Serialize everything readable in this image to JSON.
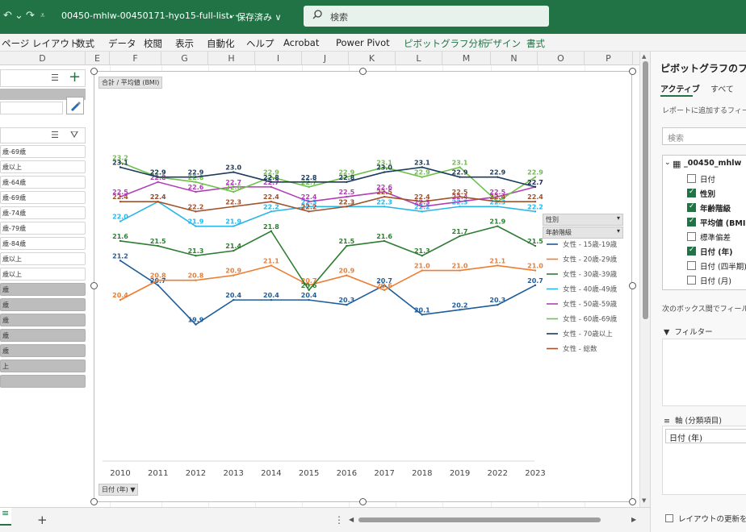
{
  "titlebar": {
    "filename": "00450-mhlw-00450171-hyo15-full-list···",
    "save_status": "• 保存済み ∨",
    "search_placeholder": "検索"
  },
  "ribbon_tabs": [
    "ページ レイアウト",
    "数式",
    "データ",
    "校閲",
    "表示",
    "自動化",
    "ヘルプ",
    "Acrobat",
    "Power Pivot",
    "ピボットグラフ分析",
    "デザイン",
    "書式"
  ],
  "columns": [
    "D",
    "E",
    "F",
    "G",
    "H",
    "I",
    "J",
    "K",
    "L",
    "M",
    "N",
    "O",
    "P"
  ],
  "slicer": {
    "items_selected": [
      "歳-69歳",
      "歳以上",
      "歳-64歳",
      "歳-69歳",
      "歳-74歳",
      "歳-79歳",
      "歳-84歳",
      "歳以上",
      "歳以上"
    ],
    "items_unselected": [
      "歳",
      "歳",
      "歳",
      "歳",
      "歳",
      "上",
      ""
    ]
  },
  "chart_buttons": {
    "value_field": "合計 / 平均値 (BMI)",
    "axis_field": "日付 (年) ▼",
    "legend_field_1": "性別",
    "legend_field_2": "年齢階級"
  },
  "chart_data": {
    "type": "line",
    "x": [
      "2010",
      "2011",
      "2012",
      "2013",
      "2014",
      "2015",
      "2016",
      "2017",
      "2018",
      "2019",
      "2022",
      "2023"
    ],
    "ylim": [
      19.5,
      23.6
    ],
    "series": [
      {
        "name": "女性 - 15歳-19歳",
        "color": "#1f5c99",
        "values": [
          21.2,
          20.7,
          19.9,
          20.4,
          20.4,
          20.4,
          20.3,
          20.7,
          20.1,
          20.2,
          20.3,
          20.7
        ]
      },
      {
        "name": "女性 - 20歳-29歳",
        "color": "#ed7d31",
        "values": [
          20.4,
          20.8,
          20.8,
          20.9,
          21.1,
          20.7,
          20.9,
          20.6,
          21.0,
          21.0,
          21.1,
          21.0
        ]
      },
      {
        "name": "女性 - 30歳-39歳",
        "color": "#2e7d32",
        "values": [
          21.6,
          21.5,
          21.3,
          21.4,
          21.8,
          20.6,
          21.5,
          21.6,
          21.3,
          21.7,
          21.9,
          21.5
        ]
      },
      {
        "name": "女性 - 40歳-49歳",
        "color": "#29b6e6",
        "values": [
          22.0,
          22.4,
          21.9,
          21.9,
          22.2,
          22.3,
          22.3,
          22.3,
          22.2,
          22.3,
          22.3,
          22.2
        ]
      },
      {
        "name": "女性 - 50歳-59歳",
        "color": "#b03fb6",
        "values": [
          22.5,
          22.8,
          22.6,
          22.7,
          22.7,
          22.4,
          22.5,
          22.6,
          22.3,
          22.4,
          22.5,
          22.7
        ]
      },
      {
        "name": "女性 - 60歳-69歳",
        "color": "#6ec04a",
        "values": [
          23.2,
          22.9,
          22.8,
          22.6,
          22.9,
          22.7,
          22.9,
          23.1,
          22.9,
          23.1,
          22.4,
          22.9
        ]
      },
      {
        "name": "女性 - 70歳以上",
        "color": "#1b3a5c",
        "values": [
          23.1,
          22.9,
          22.9,
          23.0,
          22.8,
          22.8,
          22.8,
          23.0,
          23.1,
          22.9,
          22.9,
          22.7
        ]
      },
      {
        "name": "女性 - 総数",
        "color": "#a0522d",
        "values": [
          22.4,
          22.4,
          22.2,
          22.3,
          22.4,
          22.2,
          22.3,
          22.5,
          22.4,
          22.5,
          22.4,
          22.4
        ]
      }
    ]
  },
  "panel": {
    "title": "ピボットグラフのフィールド",
    "tab_active": "アクティブ",
    "tab_all": "すべて",
    "hint": "レポートに追加するフィールドを選択してください:",
    "search_placeholder": "検索",
    "table_name": "_00450_mhlw",
    "fields": [
      {
        "label": "日付",
        "checked": false
      },
      {
        "label": "性別",
        "checked": true
      },
      {
        "label": "年齢階級",
        "checked": true
      },
      {
        "label": "平均値 (BMI)",
        "checked": true
      },
      {
        "label": "標準偏差",
        "checked": false
      },
      {
        "label": "日付 (年)",
        "checked": true
      },
      {
        "label": "日付 (四半期)",
        "checked": false
      },
      {
        "label": "日付 (月)",
        "checked": false
      }
    ],
    "drag_hint": "次のボックス間でフィールドをドラッグしてください:",
    "filter_label": "フィルター",
    "axis_label": "軸 (分類項目)",
    "axis_item": "日付 (年)",
    "defer_label": "レイアウトの更新を保留する"
  },
  "bottom": {
    "sheet_tab": "≡",
    "add_sheet": "+"
  }
}
